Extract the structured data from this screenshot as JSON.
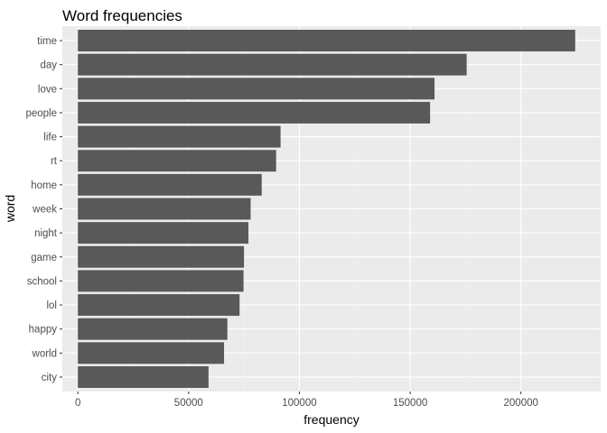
{
  "chart_data": {
    "type": "bar",
    "orientation": "horizontal",
    "title": "Word frequencies",
    "xlabel": "frequency",
    "ylabel": "word",
    "categories": [
      "time",
      "day",
      "love",
      "people",
      "life",
      "rt",
      "home",
      "week",
      "night",
      "game",
      "school",
      "lol",
      "happy",
      "world",
      "city"
    ],
    "values": [
      224500,
      175500,
      161000,
      159000,
      91500,
      89500,
      83000,
      78000,
      77000,
      75000,
      74800,
      73000,
      67500,
      66000,
      59000
    ],
    "xlim": [
      -7000,
      236000
    ],
    "x_ticks": [
      0,
      50000,
      100000,
      150000,
      200000
    ],
    "x_tick_labels": [
      "0",
      "50000",
      "100000",
      "150000",
      "200000"
    ],
    "grid": true,
    "legend": "none",
    "colors": {
      "bar": "#595959",
      "panel_background": "#ebebeb",
      "grid_major": "#ffffff",
      "grid_minor": "#f2f2f2",
      "tick_label": "#4d4d4d",
      "tick_mark": "#333333"
    }
  }
}
